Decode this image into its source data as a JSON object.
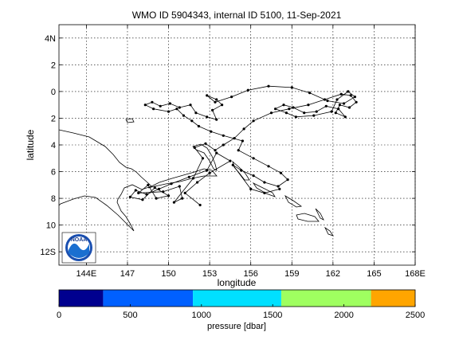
{
  "chart_data": {
    "type": "line",
    "title": "WMO ID 5904343, internal ID 5100, 11-Sep-2021",
    "xlabel": "longitude",
    "ylabel": "latitude",
    "xlim": [
      142.0,
      168.0
    ],
    "ylim": [
      -13.0,
      5.0
    ],
    "y_reversed": true,
    "grid": true,
    "x_ticks": [
      {
        "value": 144,
        "label": "144E"
      },
      {
        "value": 147,
        "label": "147"
      },
      {
        "value": 150,
        "label": "150"
      },
      {
        "value": 153,
        "label": "153"
      },
      {
        "value": 156,
        "label": "156"
      },
      {
        "value": 159,
        "label": "159"
      },
      {
        "value": 162,
        "label": "162"
      },
      {
        "value": 165,
        "label": "165"
      },
      {
        "value": 168,
        "label": "168E"
      }
    ],
    "y_ticks": [
      {
        "value": 4,
        "label": "4N"
      },
      {
        "value": 2,
        "label": "2"
      },
      {
        "value": 0,
        "label": "0"
      },
      {
        "value": -2,
        "label": "2"
      },
      {
        "value": -4,
        "label": "4"
      },
      {
        "value": -6,
        "label": "6"
      },
      {
        "value": -8,
        "label": "8"
      },
      {
        "value": -10,
        "label": "10"
      },
      {
        "value": -12,
        "label": "12S"
      }
    ],
    "float_track": [
      {
        "lon": 152.3,
        "lat": -8.5
      },
      {
        "lon": 151.2,
        "lat": -7.6
      },
      {
        "lon": 152.1,
        "lat": -6.8
      },
      {
        "lon": 153.0,
        "lat": -6.1
      },
      {
        "lon": 154.5,
        "lat": -5.2
      },
      {
        "lon": 153.5,
        "lat": -4.6
      },
      {
        "lon": 152.8,
        "lat": -5.9
      },
      {
        "lon": 151.5,
        "lat": -6.4
      },
      {
        "lon": 150.2,
        "lat": -6.9
      },
      {
        "lon": 149.3,
        "lat": -7.3
      },
      {
        "lon": 148.4,
        "lat": -7.7
      },
      {
        "lon": 147.6,
        "lat": -7.4
      },
      {
        "lon": 147.2,
        "lat": -7.9
      },
      {
        "lon": 148.1,
        "lat": -8.1
      },
      {
        "lon": 149.0,
        "lat": -7.2
      },
      {
        "lon": 150.0,
        "lat": -7.8
      },
      {
        "lon": 149.1,
        "lat": -8.0
      },
      {
        "lon": 148.5,
        "lat": -7.0
      },
      {
        "lon": 147.8,
        "lat": -7.6
      },
      {
        "lon": 149.6,
        "lat": -7.5
      },
      {
        "lon": 150.8,
        "lat": -7.1
      },
      {
        "lon": 151.0,
        "lat": -8.0
      },
      {
        "lon": 150.4,
        "lat": -8.3
      },
      {
        "lon": 151.8,
        "lat": -6.5
      },
      {
        "lon": 152.5,
        "lat": -5.0
      },
      {
        "lon": 151.9,
        "lat": -4.2
      },
      {
        "lon": 152.7,
        "lat": -3.9
      },
      {
        "lon": 153.4,
        "lat": -4.4
      },
      {
        "lon": 154.0,
        "lat": -4.0
      },
      {
        "lon": 154.8,
        "lat": -3.5
      },
      {
        "lon": 155.5,
        "lat": -2.8
      },
      {
        "lon": 156.2,
        "lat": -2.2
      },
      {
        "lon": 157.5,
        "lat": -1.6
      },
      {
        "lon": 158.8,
        "lat": -1.3
      },
      {
        "lon": 160.2,
        "lat": -1.0
      },
      {
        "lon": 161.4,
        "lat": -0.6
      },
      {
        "lon": 162.6,
        "lat": -0.2
      },
      {
        "lon": 163.3,
        "lat": -0.3
      },
      {
        "lon": 163.7,
        "lat": -0.8
      },
      {
        "lon": 163.2,
        "lat": -1.2
      },
      {
        "lon": 162.5,
        "lat": -1.0
      },
      {
        "lon": 162.2,
        "lat": -1.6
      },
      {
        "lon": 162.9,
        "lat": -1.9
      },
      {
        "lon": 162.4,
        "lat": -1.3
      },
      {
        "lon": 161.5,
        "lat": -1.1
      },
      {
        "lon": 160.8,
        "lat": -1.5
      },
      {
        "lon": 159.9,
        "lat": -1.6
      },
      {
        "lon": 159.1,
        "lat": -1.2
      },
      {
        "lon": 158.4,
        "lat": -1.0
      },
      {
        "lon": 157.8,
        "lat": -1.3
      },
      {
        "lon": 158.6,
        "lat": -1.6
      },
      {
        "lon": 159.3,
        "lat": -1.9
      },
      {
        "lon": 160.6,
        "lat": -1.8
      },
      {
        "lon": 161.9,
        "lat": -1.5
      },
      {
        "lon": 162.3,
        "lat": -0.6
      },
      {
        "lon": 163.1,
        "lat": 0.0
      },
      {
        "lon": 163.6,
        "lat": -0.4
      },
      {
        "lon": 162.8,
        "lat": -0.9
      },
      {
        "lon": 161.6,
        "lat": -0.7
      },
      {
        "lon": 160.3,
        "lat": -0.1
      },
      {
        "lon": 159.0,
        "lat": 0.3
      },
      {
        "lon": 157.3,
        "lat": 0.4
      },
      {
        "lon": 155.8,
        "lat": 0.1
      },
      {
        "lon": 154.6,
        "lat": -0.4
      },
      {
        "lon": 153.4,
        "lat": -0.8
      },
      {
        "lon": 152.8,
        "lat": -0.3
      },
      {
        "lon": 153.5,
        "lat": -0.6
      },
      {
        "lon": 153.9,
        "lat": -1.0
      },
      {
        "lon": 153.2,
        "lat": -1.4
      },
      {
        "lon": 153.5,
        "lat": -2.1
      },
      {
        "lon": 152.8,
        "lat": -1.9
      },
      {
        "lon": 152.0,
        "lat": -1.6
      },
      {
        "lon": 151.6,
        "lat": -1.0
      },
      {
        "lon": 150.8,
        "lat": -1.2
      },
      {
        "lon": 150.1,
        "lat": -0.9
      },
      {
        "lon": 149.4,
        "lat": -1.1
      },
      {
        "lon": 148.8,
        "lat": -0.8
      },
      {
        "lon": 148.3,
        "lat": -1.0
      },
      {
        "lon": 148.9,
        "lat": -1.3
      },
      {
        "lon": 150.0,
        "lat": -1.5
      },
      {
        "lon": 150.6,
        "lat": -1.3
      },
      {
        "lon": 151.1,
        "lat": -1.8
      },
      {
        "lon": 151.7,
        "lat": -2.2
      },
      {
        "lon": 152.2,
        "lat": -2.6
      },
      {
        "lon": 153.1,
        "lat": -3.0
      },
      {
        "lon": 154.0,
        "lat": -3.3
      },
      {
        "lon": 155.4,
        "lat": -3.7
      },
      {
        "lon": 155.1,
        "lat": -4.4
      },
      {
        "lon": 156.2,
        "lat": -5.0
      },
      {
        "lon": 157.3,
        "lat": -5.6
      },
      {
        "lon": 158.2,
        "lat": -6.1
      },
      {
        "lon": 158.7,
        "lat": -6.6
      },
      {
        "lon": 158.0,
        "lat": -7.1
      },
      {
        "lon": 157.0,
        "lat": -6.8
      },
      {
        "lon": 156.2,
        "lat": -6.3
      },
      {
        "lon": 155.3,
        "lat": -5.9
      },
      {
        "lon": 154.7,
        "lat": -5.5
      },
      {
        "lon": 156.0,
        "lat": -7.3
      },
      {
        "lon": 157.0,
        "lat": -7.6
      },
      {
        "lon": 158.1,
        "lat": -7.3
      }
    ],
    "noaa_logo_text": "NOAA",
    "colorbar": {
      "label": "pressure [dbar]",
      "range": [
        0,
        2500
      ],
      "ticks": [
        0,
        500,
        1000,
        1500,
        2000,
        2500
      ],
      "segments": [
        {
          "from": 0,
          "to": 310,
          "color": "#00008f"
        },
        {
          "from": 310,
          "to": 940,
          "color": "#0060ff"
        },
        {
          "from": 940,
          "to": 1560,
          "color": "#00e0ff"
        },
        {
          "from": 1560,
          "to": 2190,
          "color": "#9fff60"
        },
        {
          "from": 2190,
          "to": 2500,
          "color": "#ffa500"
        }
      ]
    }
  }
}
